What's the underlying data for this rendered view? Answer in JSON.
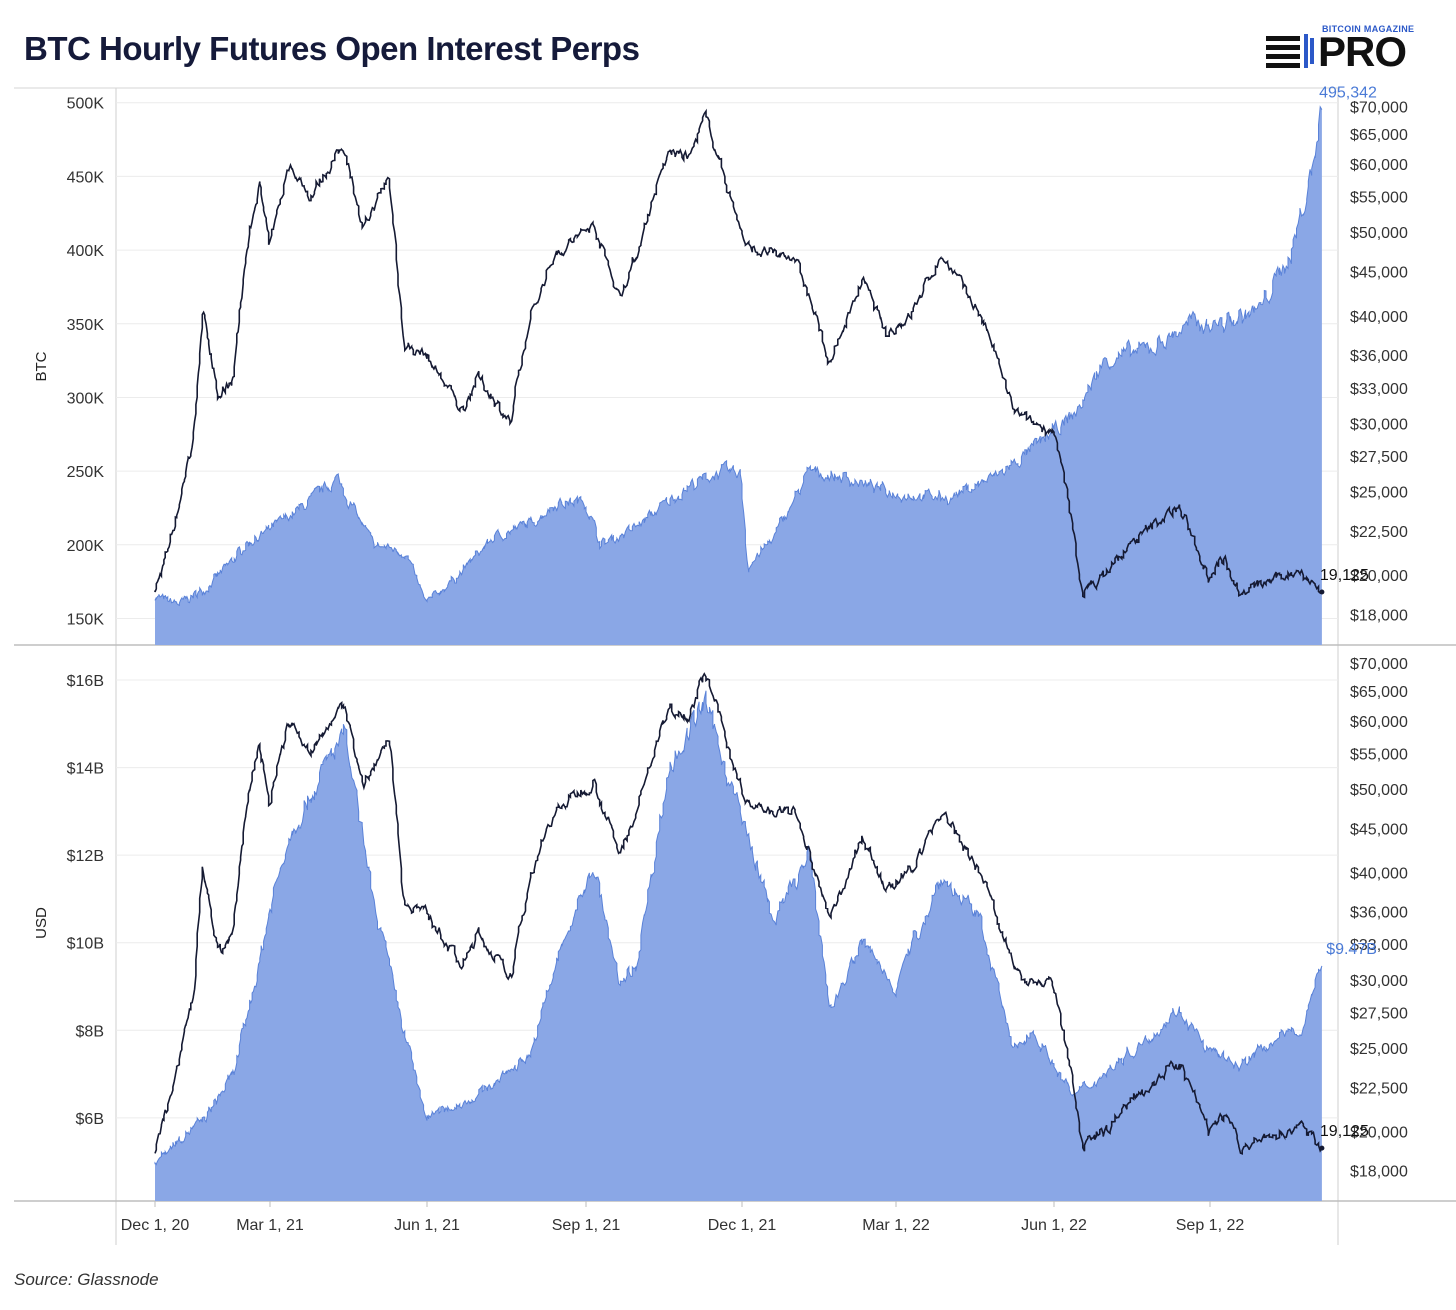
{
  "title": "BTC Hourly Futures Open Interest Perps",
  "logo": {
    "top": "BITCOIN MAGAZINE",
    "pro": "PRO"
  },
  "source": "Source: Glassnode",
  "colors": {
    "area": "#8aa7e6",
    "area_line": "#5a82d8",
    "price": "#151a33",
    "accent": "#4a7ad6"
  },
  "x_axis": {
    "ticks": [
      "Dec 1, 20",
      "Mar 1, 21",
      "Jun 1, 21",
      "Sep 1, 21",
      "Dec 1, 21",
      "Mar 1, 22",
      "Jun 1, 22",
      "Sep 1, 22"
    ]
  },
  "chart_data": [
    {
      "type": "area",
      "ylabel": "BTC",
      "ylim": [
        132000,
        510000
      ],
      "yticks": [
        "150K",
        "200K",
        "250K",
        "300K",
        "350K",
        "400K",
        "450K",
        "500K"
      ],
      "ytick_values": [
        150000,
        200000,
        250000,
        300000,
        350000,
        400000,
        450000,
        500000
      ],
      "y2_scale": "log",
      "y2lim": [
        16600,
        73500
      ],
      "y2ticks": [
        "$18,000",
        "$20,000",
        "$22,500",
        "$25,000",
        "$27,500",
        "$30,000",
        "$33,000",
        "$36,000",
        "$40,000",
        "$45,000",
        "$50,000",
        "$55,000",
        "$60,000",
        "$65,000",
        "$70,000"
      ],
      "y2tick_values": [
        18000,
        20000,
        22500,
        25000,
        27500,
        30000,
        33000,
        36000,
        40000,
        45000,
        50000,
        55000,
        60000,
        65000,
        70000
      ],
      "series": [
        {
          "axis": "left",
          "x": [
            "2020-12-01",
            "2020-12-20",
            "2021-01-10",
            "2021-02-01",
            "2021-02-10",
            "2021-03-01",
            "2021-03-20",
            "2021-04-10",
            "2021-05-01",
            "2021-05-20",
            "2021-06-01",
            "2021-06-20",
            "2021-07-10",
            "2021-08-01",
            "2021-08-15",
            "2021-09-01",
            "2021-09-10",
            "2021-10-01",
            "2021-10-20",
            "2021-11-01",
            "2021-11-20",
            "2021-12-01",
            "2021-12-05",
            "2021-12-20",
            "2022-01-10",
            "2022-02-01",
            "2022-03-01",
            "2022-04-01",
            "2022-05-01",
            "2022-05-20",
            "2022-06-15",
            "2022-07-01",
            "2022-08-01",
            "2022-08-20",
            "2022-09-10",
            "2022-10-01",
            "2022-10-20",
            "2022-11-01",
            "2022-11-06"
          ],
          "y": [
            165000,
            160000,
            170000,
            190000,
            200000,
            210000,
            225000,
            245000,
            200000,
            195000,
            160000,
            180000,
            205000,
            215000,
            228000,
            230000,
            200000,
            212000,
            230000,
            240000,
            250000,
            248000,
            185000,
            205000,
            250000,
            245000,
            235000,
            232000,
            248000,
            265000,
            290000,
            325000,
            335000,
            350000,
            350000,
            360000,
            400000,
            455000,
            495342
          ],
          "end_label": "495,342"
        },
        {
          "axis": "right",
          "x": [
            "2020-12-01",
            "2020-12-10",
            "2020-12-20",
            "2021-01-01",
            "2021-01-08",
            "2021-01-20",
            "2021-02-01",
            "2021-02-10",
            "2021-02-21",
            "2021-03-01",
            "2021-03-13",
            "2021-03-25",
            "2021-04-14",
            "2021-04-25",
            "2021-05-10",
            "2021-05-19",
            "2021-06-01",
            "2021-06-22",
            "2021-07-01",
            "2021-07-20",
            "2021-08-01",
            "2021-08-14",
            "2021-09-06",
            "2021-09-21",
            "2021-10-01",
            "2021-10-20",
            "2021-11-01",
            "2021-11-10",
            "2021-11-26",
            "2021-12-04",
            "2021-12-20",
            "2022-01-01",
            "2022-01-22",
            "2022-02-10",
            "2022-02-24",
            "2022-03-10",
            "2022-03-28",
            "2022-04-20",
            "2022-05-09",
            "2022-05-20",
            "2022-06-01",
            "2022-06-13",
            "2022-06-18",
            "2022-07-01",
            "2022-07-20",
            "2022-08-01",
            "2022-08-14",
            "2022-09-01",
            "2022-09-10",
            "2022-09-20",
            "2022-10-01",
            "2022-10-25",
            "2022-11-06"
          ],
          "y": [
            19000,
            21000,
            24000,
            29000,
            40000,
            32000,
            34000,
            46000,
            57000,
            48000,
            60000,
            55000,
            63000,
            50000,
            58000,
            37000,
            36000,
            31000,
            34000,
            30000,
            40000,
            47000,
            51000,
            42000,
            47000,
            62000,
            61000,
            68000,
            54000,
            48000,
            47000,
            47000,
            35000,
            44000,
            38000,
            40000,
            47000,
            40000,
            31000,
            30000,
            29500,
            22500,
            19000,
            20000,
            22000,
            23000,
            24000,
            20000,
            21000,
            19000,
            19500,
            20300,
            19125
          ],
          "end_label": "19,125"
        }
      ]
    },
    {
      "type": "area",
      "ylabel": "USD",
      "ylim": [
        4100000000,
        16800000000
      ],
      "yticks": [
        "$6B",
        "$8B",
        "$10B",
        "$12B",
        "$14B",
        "$16B"
      ],
      "ytick_values": [
        6000000000,
        8000000000,
        10000000000,
        12000000000,
        14000000000,
        16000000000
      ],
      "y2_scale": "log",
      "y2lim": [
        16600,
        73500
      ],
      "y2ticks": [
        "$18,000",
        "$20,000",
        "$22,500",
        "$25,000",
        "$27,500",
        "$30,000",
        "$33,000",
        "$36,000",
        "$40,000",
        "$45,000",
        "$50,000",
        "$55,000",
        "$60,000",
        "$65,000",
        "$70,000"
      ],
      "y2tick_values": [
        18000,
        20000,
        22500,
        25000,
        27500,
        30000,
        33000,
        36000,
        40000,
        45000,
        50000,
        55000,
        60000,
        65000,
        70000
      ],
      "series": [
        {
          "axis": "left",
          "x": [
            "2020-12-01",
            "2020-12-20",
            "2021-01-10",
            "2021-02-01",
            "2021-02-21",
            "2021-03-13",
            "2021-04-14",
            "2021-05-01",
            "2021-05-19",
            "2021-06-01",
            "2021-07-01",
            "2021-08-01",
            "2021-08-15",
            "2021-09-06",
            "2021-09-21",
            "2021-10-01",
            "2021-10-20",
            "2021-11-10",
            "2021-12-04",
            "2021-12-20",
            "2022-01-10",
            "2022-01-22",
            "2022-02-10",
            "2022-03-01",
            "2022-03-28",
            "2022-04-20",
            "2022-05-09",
            "2022-05-20",
            "2022-06-13",
            "2022-07-01",
            "2022-08-01",
            "2022-08-14",
            "2022-09-01",
            "2022-09-20",
            "2022-10-10",
            "2022-10-25",
            "2022-11-06"
          ],
          "y": [
            5000000000,
            5500000000,
            6000000000,
            7000000000,
            9500000000,
            12500000000,
            14800000000,
            11000000000,
            8000000000,
            6000000000,
            6500000000,
            7500000000,
            9500000000,
            11800000000,
            9000000000,
            9500000000,
            14000000000,
            15500000000,
            12500000000,
            10500000000,
            12000000000,
            8500000000,
            10000000000,
            9000000000,
            11500000000,
            10500000000,
            7500000000,
            8000000000,
            6500000000,
            7000000000,
            8000000000,
            8500000000,
            7500000000,
            7200000000,
            7800000000,
            8000000000,
            9470000000
          ],
          "end_label": "$9.47B"
        },
        {
          "axis": "right",
          "x": [
            "2020-12-01",
            "2020-12-10",
            "2020-12-20",
            "2021-01-01",
            "2021-01-08",
            "2021-01-20",
            "2021-02-01",
            "2021-02-10",
            "2021-02-21",
            "2021-03-01",
            "2021-03-13",
            "2021-03-25",
            "2021-04-14",
            "2021-04-25",
            "2021-05-10",
            "2021-05-19",
            "2021-06-01",
            "2021-06-22",
            "2021-07-01",
            "2021-07-20",
            "2021-08-01",
            "2021-08-14",
            "2021-09-06",
            "2021-09-21",
            "2021-10-01",
            "2021-10-20",
            "2021-11-01",
            "2021-11-10",
            "2021-11-26",
            "2021-12-04",
            "2021-12-20",
            "2022-01-01",
            "2022-01-22",
            "2022-02-10",
            "2022-02-24",
            "2022-03-10",
            "2022-03-28",
            "2022-04-20",
            "2022-05-09",
            "2022-05-20",
            "2022-06-01",
            "2022-06-13",
            "2022-06-18",
            "2022-07-01",
            "2022-07-20",
            "2022-08-01",
            "2022-08-14",
            "2022-09-01",
            "2022-09-10",
            "2022-09-20",
            "2022-10-01",
            "2022-10-25",
            "2022-11-06"
          ],
          "y": [
            19000,
            21000,
            24000,
            29000,
            40000,
            32000,
            34000,
            46000,
            57000,
            48000,
            60000,
            55000,
            63000,
            50000,
            58000,
            37000,
            36000,
            31000,
            34000,
            30000,
            40000,
            47000,
            51000,
            42000,
            47000,
            62000,
            61000,
            68000,
            54000,
            48000,
            47000,
            47000,
            35000,
            44000,
            38000,
            40000,
            47000,
            40000,
            31000,
            30000,
            29500,
            22500,
            19000,
            20000,
            22000,
            23000,
            24000,
            20000,
            21000,
            19000,
            19500,
            20300,
            19125
          ],
          "end_label": "19,125"
        }
      ]
    }
  ]
}
